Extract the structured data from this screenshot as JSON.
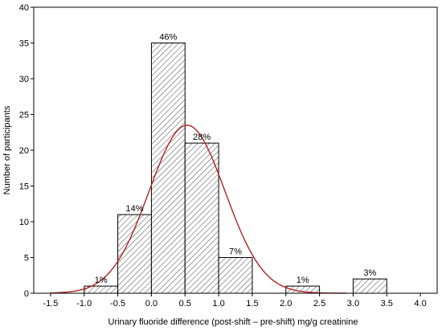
{
  "chart_data": {
    "type": "bar",
    "subtype": "histogram",
    "title": "",
    "xlabel": "Urinary fluoride difference (post-shift – pre-shift) mg/g creatinine",
    "ylabel": "Number of participants",
    "xlim": [
      -1.75,
      4.25
    ],
    "ylim": [
      0,
      40
    ],
    "x_ticks": [
      "-1.5",
      "-1.0",
      "-0.5",
      "0.0",
      "0.5",
      "1.0",
      "1.5",
      "2.0",
      "2.5",
      "3.0",
      "3.5",
      "4.0"
    ],
    "x_tick_values": [
      -1.5,
      -1.0,
      -0.5,
      0.0,
      0.5,
      1.0,
      1.5,
      2.0,
      2.5,
      3.0,
      3.5,
      4.0
    ],
    "y_ticks": [
      "0",
      "5",
      "10",
      "15",
      "20",
      "25",
      "30",
      "35",
      "40"
    ],
    "y_tick_values": [
      0,
      5,
      10,
      15,
      20,
      25,
      30,
      35,
      40
    ],
    "grid": false,
    "bins": [
      {
        "start": -1.0,
        "end": -0.5,
        "count": 1,
        "label": "1%"
      },
      {
        "start": -0.5,
        "end": 0.0,
        "count": 11,
        "label": "14%"
      },
      {
        "start": 0.0,
        "end": 0.5,
        "count": 35,
        "label": "46%"
      },
      {
        "start": 0.5,
        "end": 1.0,
        "count": 21,
        "label": "28%"
      },
      {
        "start": 1.0,
        "end": 1.5,
        "count": 5,
        "label": "7%"
      },
      {
        "start": 2.0,
        "end": 2.5,
        "count": 1,
        "label": "1%"
      },
      {
        "start": 3.0,
        "end": 3.5,
        "count": 2,
        "label": "3%"
      }
    ],
    "normal_curve": {
      "mean": 0.53,
      "sd": 0.565,
      "peak": 23.5,
      "x_range": [
        -1.5,
        2.9
      ]
    },
    "colors": {
      "bar_fill": "#ffffff",
      "bar_hatch": "#555555",
      "bar_edge": "#000000",
      "curve": "#b22222"
    }
  }
}
